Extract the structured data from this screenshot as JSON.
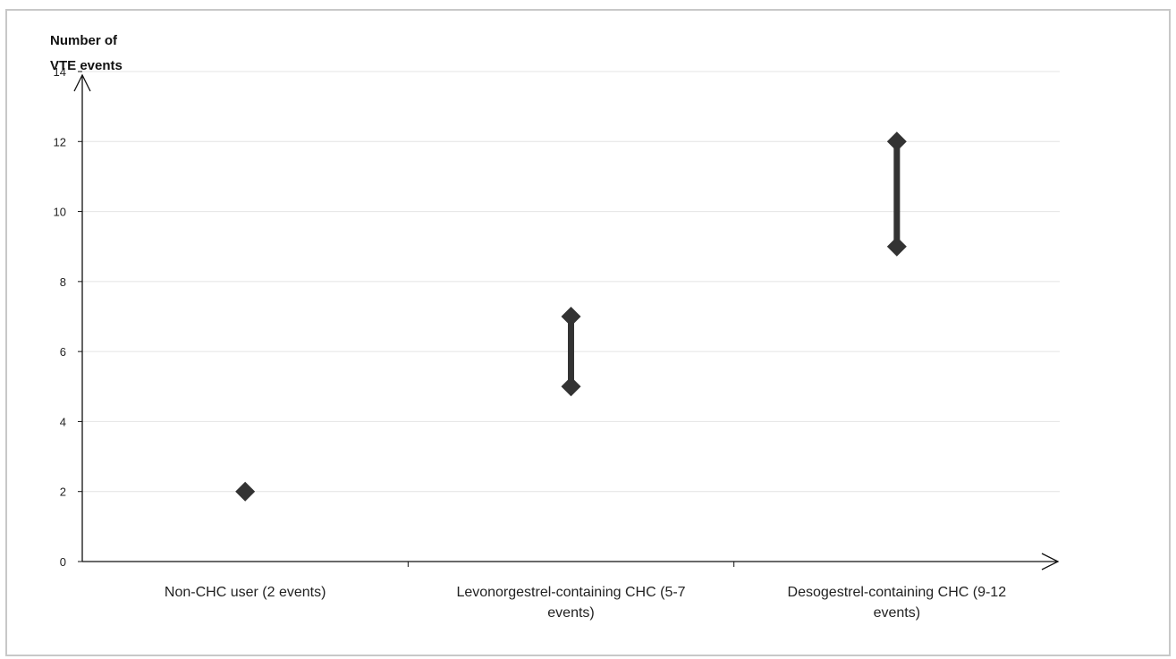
{
  "chart_data": {
    "type": "range",
    "ylabel_lines": [
      "Number of",
      "VTE events"
    ],
    "ylim": [
      0,
      14
    ],
    "yticks": [
      0,
      2,
      4,
      6,
      8,
      10,
      12,
      14
    ],
    "grid": true,
    "categories": [
      {
        "label_lines": [
          "Non-CHC user (2 events)"
        ],
        "low": 2,
        "high": 2
      },
      {
        "label_lines": [
          "Levonorgestrel-containing CHC (5-7",
          "events)"
        ],
        "low": 5,
        "high": 7
      },
      {
        "label_lines": [
          "Desogestrel-containing CHC (9-12",
          "events)"
        ],
        "low": 9,
        "high": 12
      }
    ],
    "colors": {
      "marker": "#333333",
      "grid": "#e4e4e4",
      "axis": "#111111"
    }
  }
}
